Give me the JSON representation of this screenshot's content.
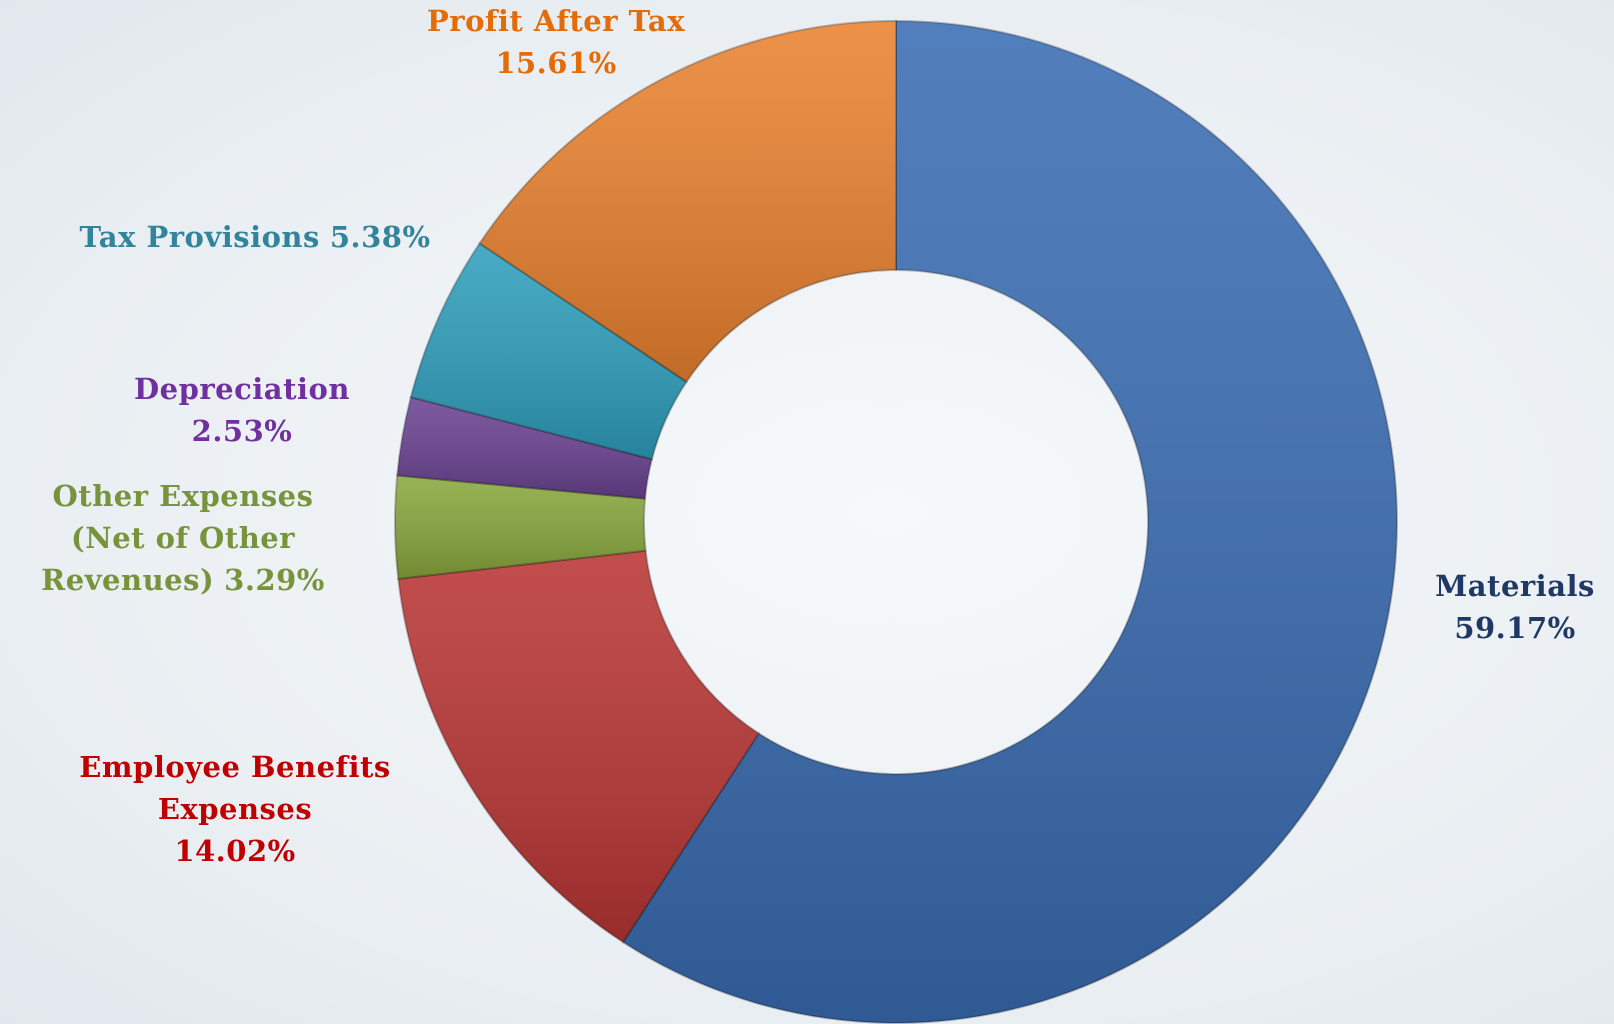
{
  "chart_data": {
    "type": "donut",
    "categories": [
      "Materials",
      "Employee Benefits Expenses",
      "Other Expenses (Net of Other Revenues)",
      "Depreciation",
      "Tax Provisions",
      "Profit After Tax"
    ],
    "values": [
      59.17,
      14.02,
      3.29,
      2.53,
      5.38,
      15.61
    ],
    "value_labels": [
      "59.17%",
      "14.02%",
      "3.29%",
      "2.53%",
      "5.38%",
      "15.61%"
    ],
    "colors": [
      "#3a6db3",
      "#b93634",
      "#89a83d",
      "#6b4392",
      "#2f9fbd",
      "#ea8230"
    ],
    "label_colors": [
      "#1f3864",
      "#c00000",
      "#77933c",
      "#7030a0",
      "#31849b",
      "#e36c09"
    ]
  }
}
